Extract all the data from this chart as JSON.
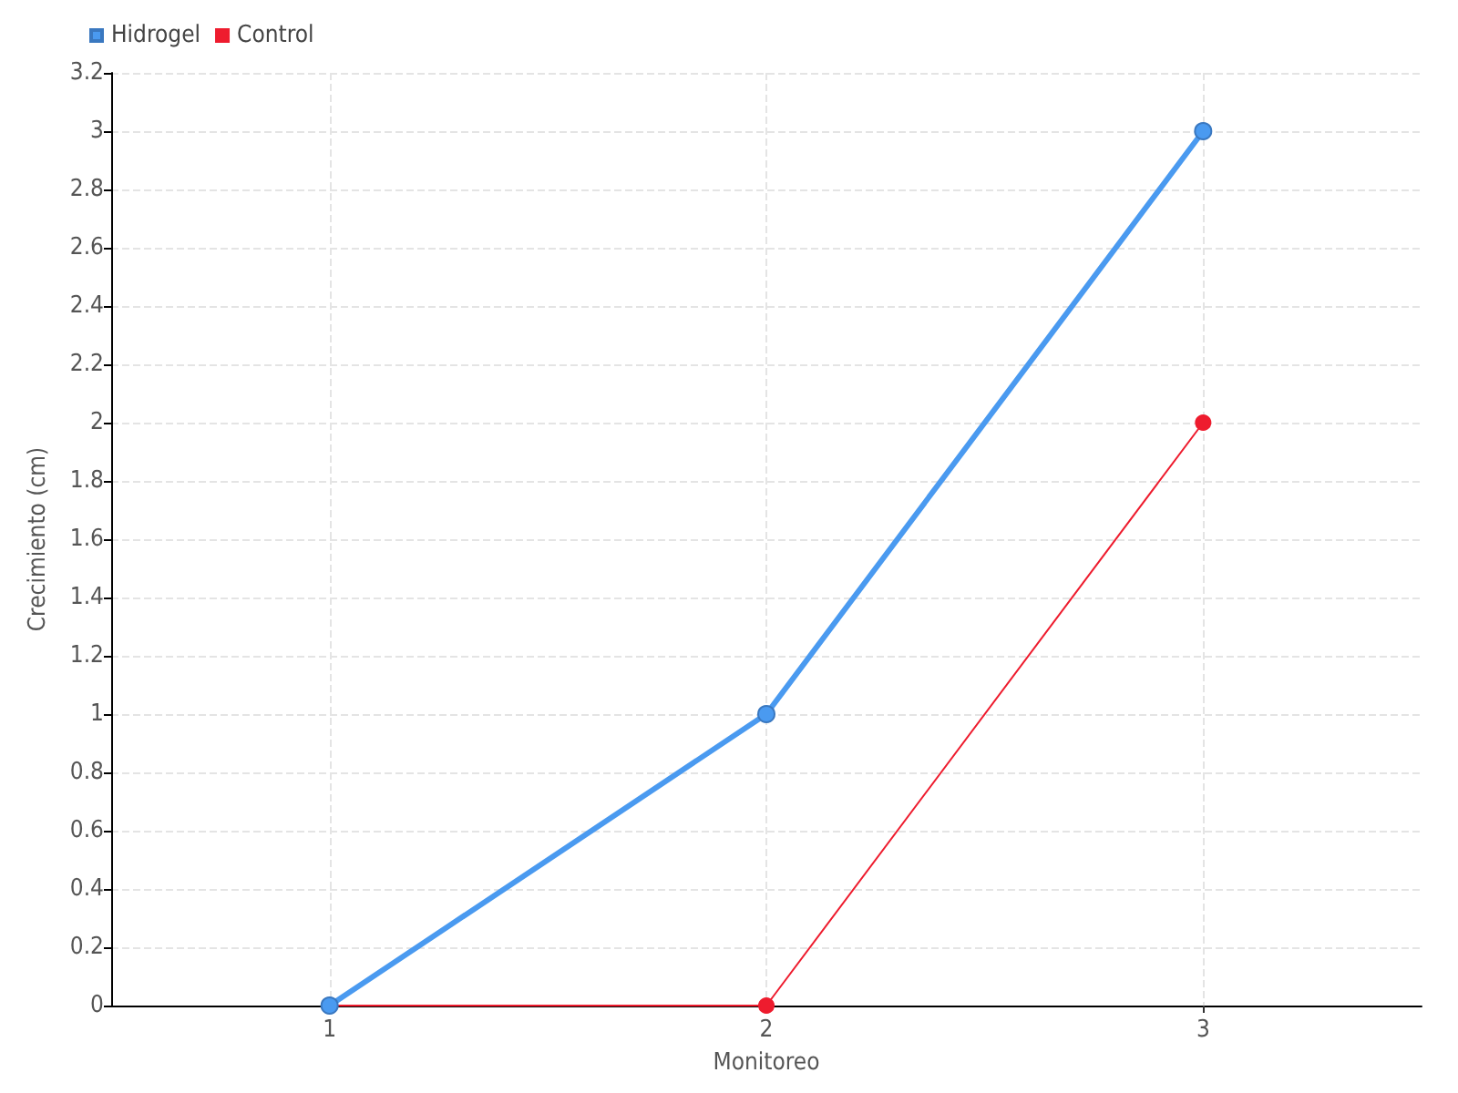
{
  "chart_data": {
    "type": "line",
    "xlabel": "Monitoreo",
    "ylabel": "Crecimiento (cm)",
    "x": [
      1,
      2,
      3
    ],
    "series": [
      {
        "name": "Hidrogel",
        "color": "#4a9af0",
        "values": [
          0,
          1,
          3
        ]
      },
      {
        "name": "Control",
        "color": "#ee1c2e",
        "values": [
          0,
          0,
          2
        ]
      }
    ],
    "xlim": [
      0.5,
      3.5
    ],
    "xticks": [
      1,
      2,
      3
    ],
    "ylim": [
      0,
      3.2
    ],
    "yticks": [
      0,
      0.2,
      0.4,
      0.6,
      0.8,
      1,
      1.2,
      1.4,
      1.6,
      1.8,
      2,
      2.2,
      2.4,
      2.6,
      2.8,
      3,
      3.2
    ],
    "grid": true,
    "legend": "top left",
    "marker": "circle",
    "line_style": "solid"
  }
}
